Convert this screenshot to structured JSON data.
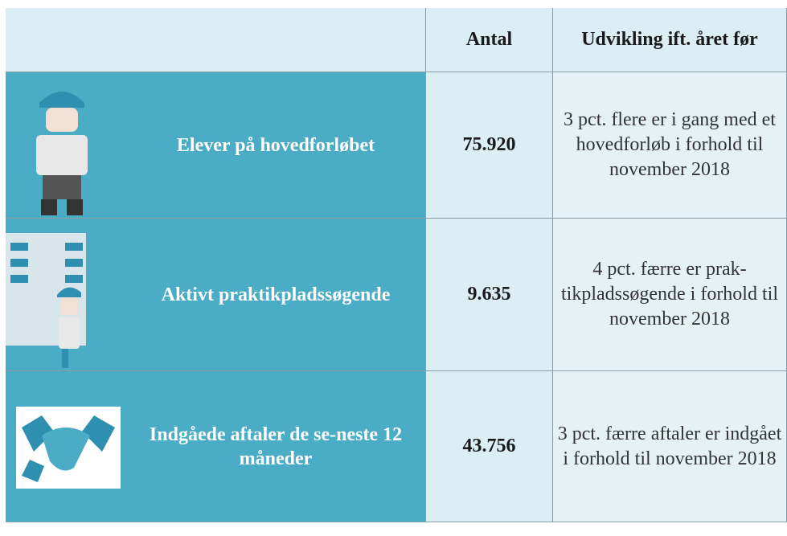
{
  "table": {
    "header": [
      "Antal",
      "Udvikling ift. året før"
    ],
    "rows": [
      {
        "label": "Elever på hovedforløbet",
        "value": "75.920",
        "change": "3 pct. flere er i gang med et hovedforløb i forhold til november 2018"
      },
      {
        "label": "Aktivt praktikpladssøgende",
        "value": "9.635",
        "change": "4 pct. færre er prak-tikpladssøgende i forhold til november 2018"
      },
      {
        "label": "Indgåede aftaler de se-neste 12 måneder",
        "value": "43.756",
        "change": "3 pct. færre aftaler er indgået i forhold til november 2018"
      }
    ]
  }
}
